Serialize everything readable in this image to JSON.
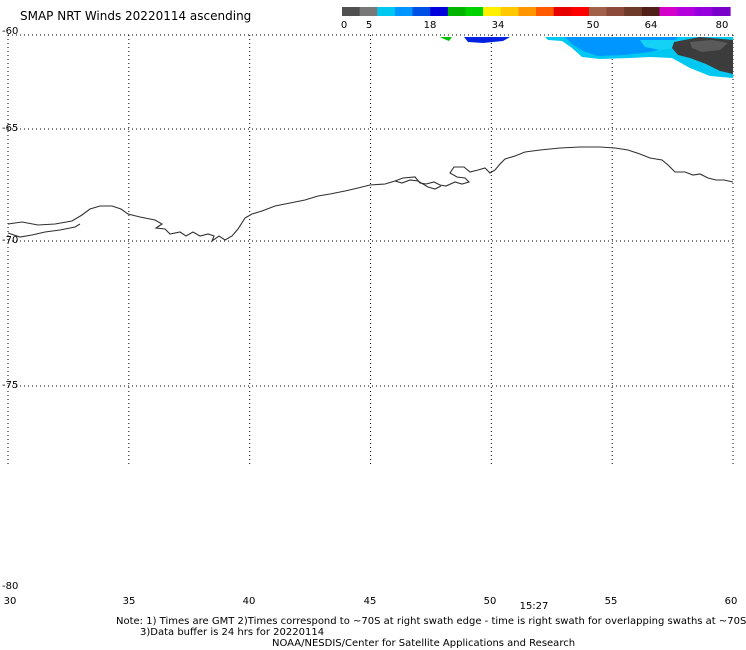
{
  "title": "SMAP NRT Winds 20220114 ascending",
  "colorbar": {
    "tick_labels": [
      "0",
      "5",
      "18",
      "34",
      "50",
      "64",
      "80"
    ],
    "segments": [
      "#505050",
      "#787878",
      "#00c8f0",
      "#0096ff",
      "#0050e6",
      "#0000dc",
      "#00b400",
      "#00d200",
      "#fff000",
      "#ffc800",
      "#ff9600",
      "#ff5a00",
      "#e60000",
      "#ff0000",
      "#a0604a",
      "#8c4a3a",
      "#6e3a2a",
      "#502018",
      "#d200c8",
      "#b400dc",
      "#9600dc",
      "#7800c8"
    ]
  },
  "map": {
    "lat_labels": [
      "-60",
      "-65",
      "-70",
      "-75",
      "-80"
    ],
    "lon_labels": [
      "30",
      "35",
      "40",
      "45",
      "50",
      "55",
      "60"
    ],
    "lat_lines": [
      -60,
      -65,
      -70,
      -75
    ],
    "lon_lines": [
      30,
      35,
      40,
      45,
      50,
      55,
      60
    ],
    "lon_range": [
      30,
      60
    ],
    "lat_range": [
      -60,
      -80
    ]
  },
  "time_label": "15:27",
  "notes": {
    "line1": "Note: 1) Times are GMT 2)Times correspond to ~70S at right swath edge - time is right swath for overlapping swaths at ~70S",
    "line2": "3)Data buffer is 24 hrs for 20220114",
    "line3": "NOAA/NESDIS/Center for Satellite Applications and Research"
  }
}
